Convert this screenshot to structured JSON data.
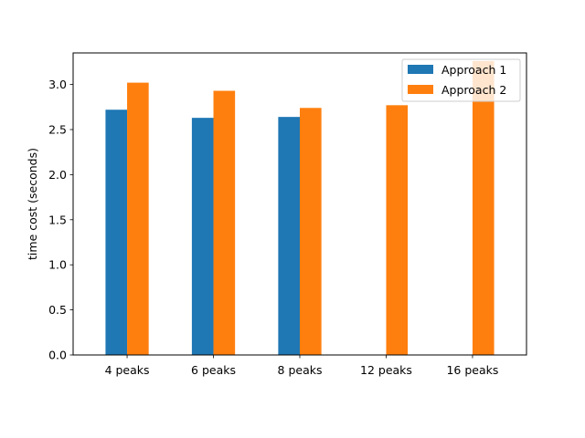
{
  "chart_data": {
    "type": "bar",
    "title": "",
    "xlabel": "",
    "ylabel": "time cost (seconds)",
    "categories": [
      "4 peaks",
      "6 peaks",
      "8 peaks",
      "12 peaks",
      "16 peaks"
    ],
    "series": [
      {
        "name": "Approach 1",
        "color": "#1f77b4",
        "values": [
          2.72,
          2.63,
          2.64,
          null,
          null
        ]
      },
      {
        "name": "Approach 2",
        "color": "#ff7f0e",
        "values": [
          3.02,
          2.93,
          2.74,
          2.77,
          3.26
        ]
      }
    ],
    "ylim": [
      0,
      3.35
    ],
    "yticks": [
      "0.0",
      "0.5",
      "1.0",
      "1.5",
      "2.0",
      "2.5",
      "3.0"
    ],
    "grid": false,
    "legend_position": "top-right"
  }
}
